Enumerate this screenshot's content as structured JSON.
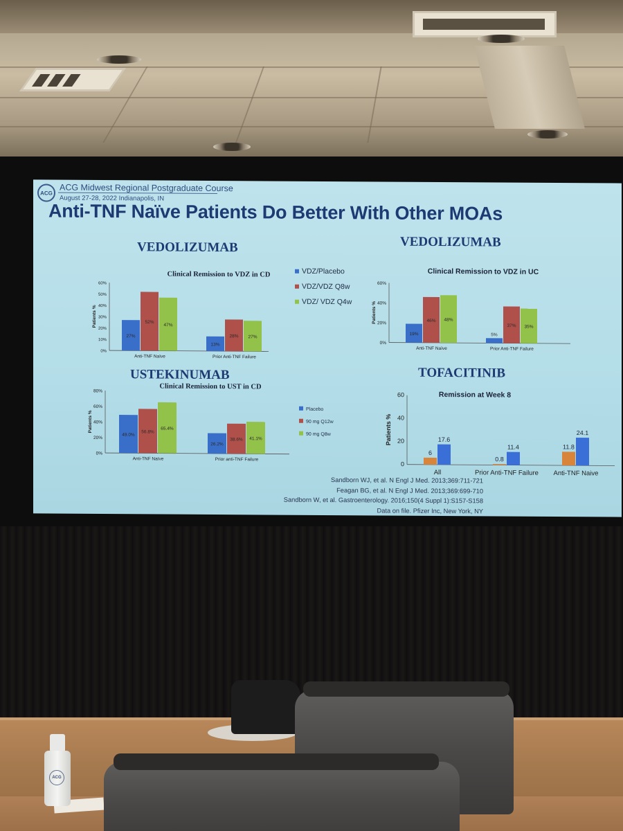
{
  "header": {
    "logo_text": "ACG",
    "course_title": "ACG Midwest Regional Postgraduate Course",
    "course_date": "August 27-28, 2022     Indianapolis, IN"
  },
  "slide_title": "Anti-TNF Naïve Patients Do Better With Other MOAs",
  "sections": {
    "top_left": "VEDOLIZUMAB",
    "top_right": "VEDOLIZUMAB",
    "bottom_left": "USTEKINUMAB",
    "bottom_right": "TOFACITINIB"
  },
  "references": [
    "Sandborn WJ, et al. N Engl J Med. 2013;369:711-721",
    "Feagan BG, et al. N Engl J Med. 2013;369:699-710",
    "Sandborn W, et al. Gastroenterology. 2016;150(4 Suppl 1):S157-S158",
    "Data on file. Pfizer Inc, New York, NY"
  ],
  "bottle_logo": "ACG",
  "colors": {
    "blue": "#3a6fc9",
    "red": "#b0504a",
    "green": "#93c24a",
    "orange": "#d8843a",
    "tofa_blue": "#3a6fd8",
    "title_navy": "#1d3a72"
  },
  "chart_data": [
    {
      "type": "bar",
      "title": "Clinical Remission to VDZ in CD",
      "ylabel": "Patients %",
      "ylim": [
        0,
        60
      ],
      "yticks": [
        "0%",
        "10%",
        "20%",
        "30%",
        "40%",
        "50%",
        "60%"
      ],
      "categories": [
        "Anti-TNF Naïve",
        "Prior Anti-TNF Failure"
      ],
      "series": [
        {
          "name": "VDZ/Placebo",
          "values": [
            27,
            13
          ],
          "labels": [
            "27%",
            "13%"
          ]
        },
        {
          "name": "VDZ/VDZ Q8w",
          "values": [
            52,
            28
          ],
          "labels": [
            "52%",
            "28%"
          ]
        },
        {
          "name": "VDZ/ VDZ Q4w",
          "values": [
            47,
            27
          ],
          "labels": [
            "47%",
            "27%"
          ]
        }
      ],
      "legend": "right"
    },
    {
      "type": "bar",
      "title": "Clinical Remission to VDZ in UC",
      "ylabel": "Patients %",
      "ylim": [
        0,
        60
      ],
      "yticks": [
        "0%",
        "20%",
        "40%",
        "60%"
      ],
      "categories": [
        "Anti-TNF Naïve",
        "Prior Anti-TNF Failure"
      ],
      "series": [
        {
          "name": "VDZ/Placebo",
          "values": [
            19,
            5
          ],
          "labels": [
            "19%",
            "5%"
          ]
        },
        {
          "name": "VDZ/VDZ Q8w",
          "values": [
            46,
            37
          ],
          "labels": [
            "46%",
            "37%"
          ]
        },
        {
          "name": "VDZ/ VDZ Q4w",
          "values": [
            48,
            35
          ],
          "labels": [
            "48%",
            "35%"
          ]
        }
      ]
    },
    {
      "type": "bar",
      "title": "Clinical Remission to UST in CD",
      "ylabel": "Patients %",
      "ylim": [
        0,
        80
      ],
      "yticks": [
        "0%",
        "20%",
        "40%",
        "60%",
        "80%"
      ],
      "categories": [
        "Anti-TNF Naïve",
        "Prior anti-TNF Failure"
      ],
      "series": [
        {
          "name": "Placebo",
          "values": [
            49.0,
            26.2
          ],
          "labels": [
            "49.0%",
            "26.2%"
          ]
        },
        {
          "name": "90 mg Q12w",
          "values": [
            56.8,
            38.6
          ],
          "labels": [
            "56.8%",
            "38.6%"
          ]
        },
        {
          "name": "90 mg Q8w",
          "values": [
            65.4,
            41.1
          ],
          "labels": [
            "65.4%",
            "41.1%"
          ]
        }
      ],
      "legend": "right"
    },
    {
      "type": "bar",
      "title": "Remission at Week 8",
      "ylabel": "Patients %",
      "ylim": [
        0,
        60
      ],
      "yticks": [
        "0",
        "20",
        "40",
        "60"
      ],
      "categories": [
        "All",
        "Prior Anti-TNF Failure",
        "Anti-TNF Naive"
      ],
      "series": [
        {
          "values": [
            6,
            0.8,
            11.8
          ],
          "labels": [
            "6",
            "0.8",
            "11.8"
          ]
        },
        {
          "values": [
            17.6,
            11.4,
            24.1
          ],
          "labels": [
            "17.6",
            "11.4",
            "24.1"
          ]
        }
      ]
    }
  ]
}
